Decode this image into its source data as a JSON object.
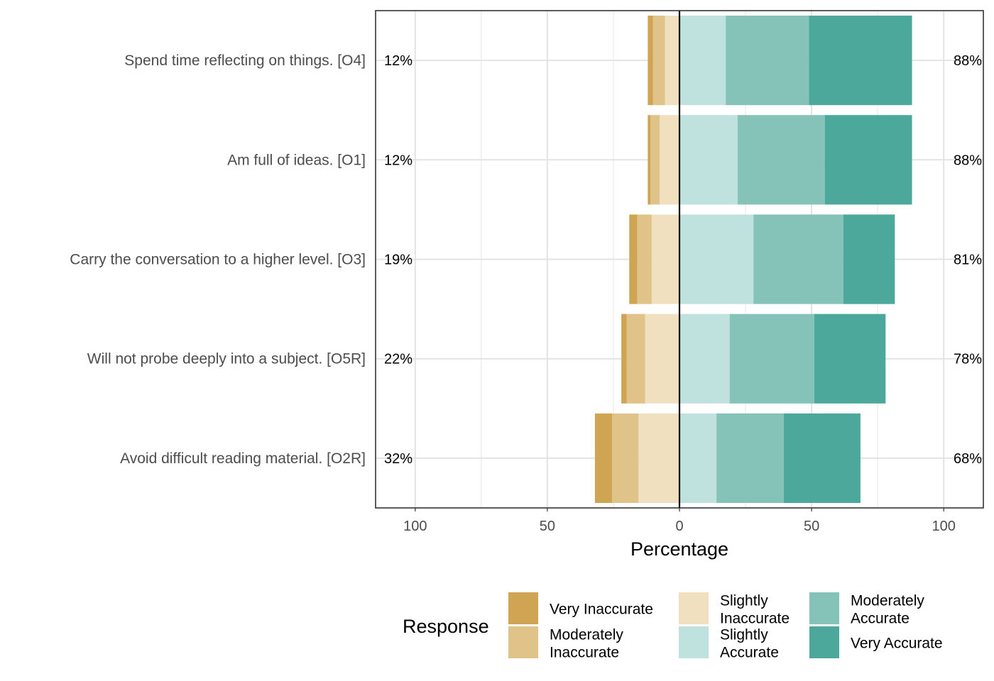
{
  "chart_data": {
    "type": "bar",
    "orientation": "horizontal",
    "stacking": "diverging",
    "categories": [
      "Spend time reflecting on things. [O4]",
      "Am full of ideas. [O1]",
      "Carry the conversation to a higher level. [O3]",
      "Will not probe deeply into a subject. [O5R]",
      "Avoid difficult reading material. [O2R]"
    ],
    "series": [
      {
        "name": "Very Inaccurate",
        "color": "#cfa554",
        "values": [
          2,
          1,
          3,
          2,
          6.5
        ]
      },
      {
        "name": "Moderately Inaccurate",
        "color": "#e0c389",
        "values": [
          4.5,
          3.5,
          5.5,
          7,
          10
        ]
      },
      {
        "name": "Slightly Inaccurate",
        "color": "#f0e0c0",
        "values": [
          5.5,
          7.5,
          10.5,
          13,
          15.5
        ]
      },
      {
        "name": "Slightly Accurate",
        "color": "#bfe2de",
        "values": [
          17.5,
          22,
          28,
          19,
          14
        ]
      },
      {
        "name": "Moderately Accurate",
        "color": "#85c3b9",
        "values": [
          31.5,
          33,
          34,
          32,
          25.5
        ]
      },
      {
        "name": "Very Accurate",
        "color": "#4ba89b",
        "values": [
          39,
          33,
          19.5,
          27,
          29
        ]
      }
    ],
    "negative_series": [
      "Very Inaccurate",
      "Moderately Inaccurate",
      "Slightly Inaccurate"
    ],
    "left_totals": [
      "12%",
      "12%",
      "19%",
      "22%",
      "32%"
    ],
    "right_totals": [
      "88%",
      "88%",
      "81%",
      "78%",
      "68%"
    ],
    "xlabel": "Percentage",
    "ylabel": "",
    "xlim": [
      -115,
      115
    ],
    "xticks": [
      -100,
      -50,
      0,
      50,
      100
    ],
    "xtick_labels": [
      "100",
      "50",
      "0",
      "50",
      "100"
    ],
    "grid": true,
    "legend": {
      "title": "Response",
      "position": "bottom",
      "entries": [
        {
          "lines": [
            "Very Inaccurate"
          ],
          "color": "#cfa554"
        },
        {
          "lines": [
            "Moderately",
            "Inaccurate"
          ],
          "color": "#e0c389"
        },
        {
          "lines": [
            "Slightly",
            "Inaccurate"
          ],
          "color": "#f0e0c0"
        },
        {
          "lines": [
            "Slightly",
            "Accurate"
          ],
          "color": "#bfe2de"
        },
        {
          "lines": [
            "Moderately",
            "Accurate"
          ],
          "color": "#85c3b9"
        },
        {
          "lines": [
            "Very Accurate"
          ],
          "color": "#4ba89b"
        }
      ]
    }
  }
}
